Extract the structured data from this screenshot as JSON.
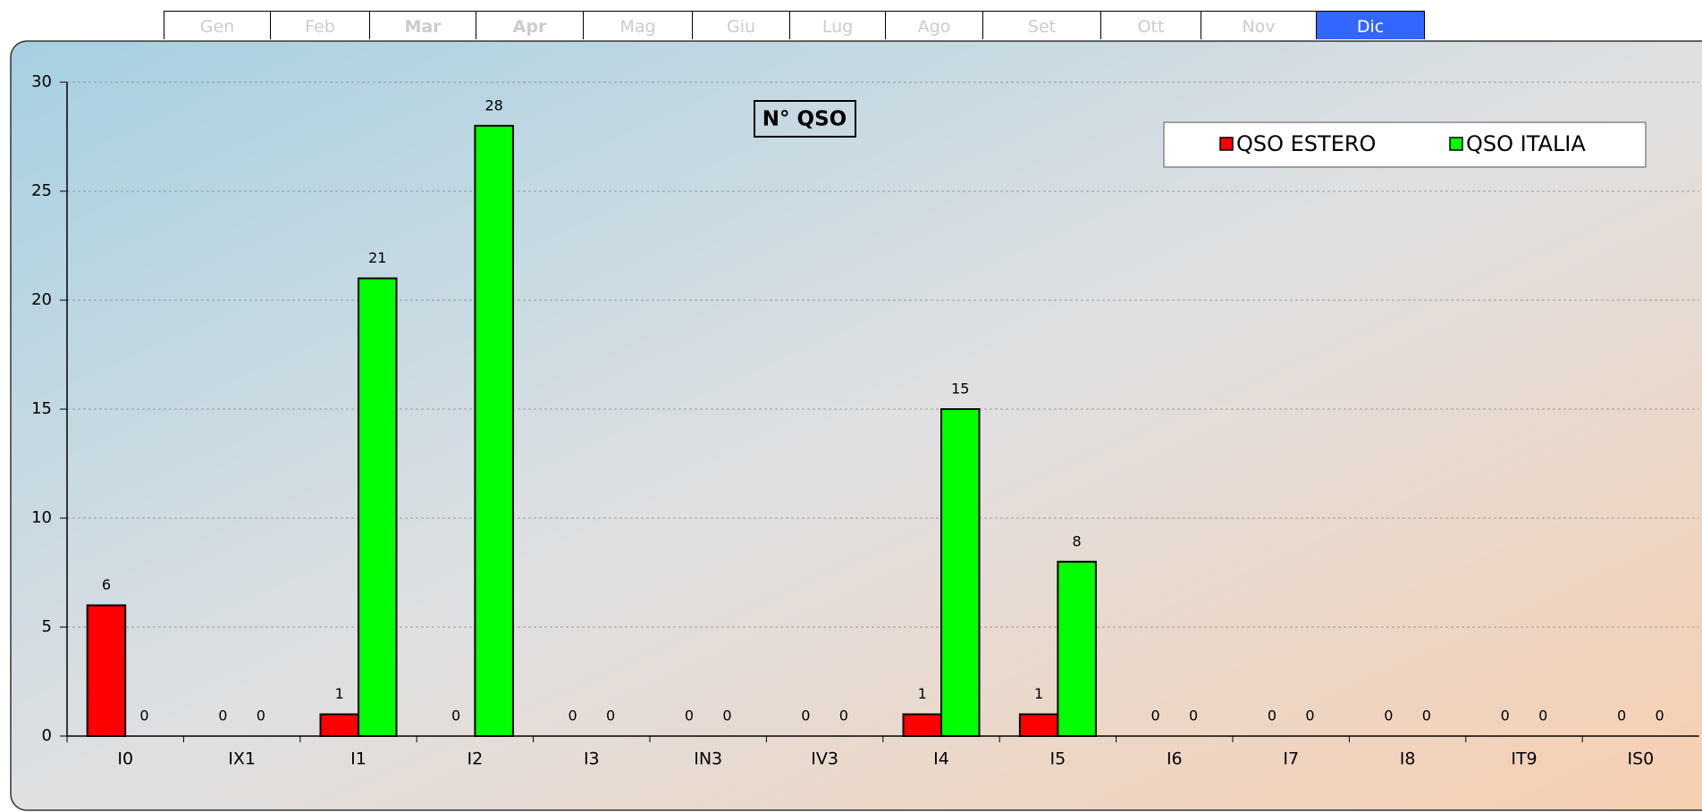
{
  "tabs": [
    {
      "label": "Gen",
      "state": "dim"
    },
    {
      "label": "Feb",
      "state": "dim"
    },
    {
      "label": "Mar",
      "state": "bold"
    },
    {
      "label": "Apr",
      "state": "bold"
    },
    {
      "label": "Mag",
      "state": "dim"
    },
    {
      "label": "Giu",
      "state": "dim"
    },
    {
      "label": "Lug",
      "state": "dim"
    },
    {
      "label": "Ago",
      "state": "dim"
    },
    {
      "label": "Set",
      "state": "dim"
    },
    {
      "label": "Ott",
      "state": "dim"
    },
    {
      "label": "Nov",
      "state": "dim"
    },
    {
      "label": "Dic",
      "state": "selected"
    }
  ],
  "chart_data": {
    "type": "bar",
    "title": "N° QSO",
    "categories": [
      "I0",
      "IX1",
      "I1",
      "I2",
      "I3",
      "IN3",
      "IV3",
      "I4",
      "I5",
      "I6",
      "I7",
      "I8",
      "IT9",
      "IS0"
    ],
    "series": [
      {
        "name": "QSO ESTERO",
        "color": "#ff0000",
        "values": [
          6,
          0,
          1,
          0,
          0,
          0,
          0,
          1,
          1,
          0,
          0,
          0,
          0,
          0
        ]
      },
      {
        "name": "QSO ITALIA",
        "color": "#00ff00",
        "values": [
          0,
          0,
          21,
          28,
          0,
          0,
          0,
          15,
          8,
          0,
          0,
          0,
          0,
          0
        ]
      }
    ],
    "ylim": [
      0,
      30
    ],
    "yticks": [
      0,
      5,
      10,
      15,
      20,
      25,
      30
    ],
    "grid": true,
    "legend": "top-right"
  }
}
